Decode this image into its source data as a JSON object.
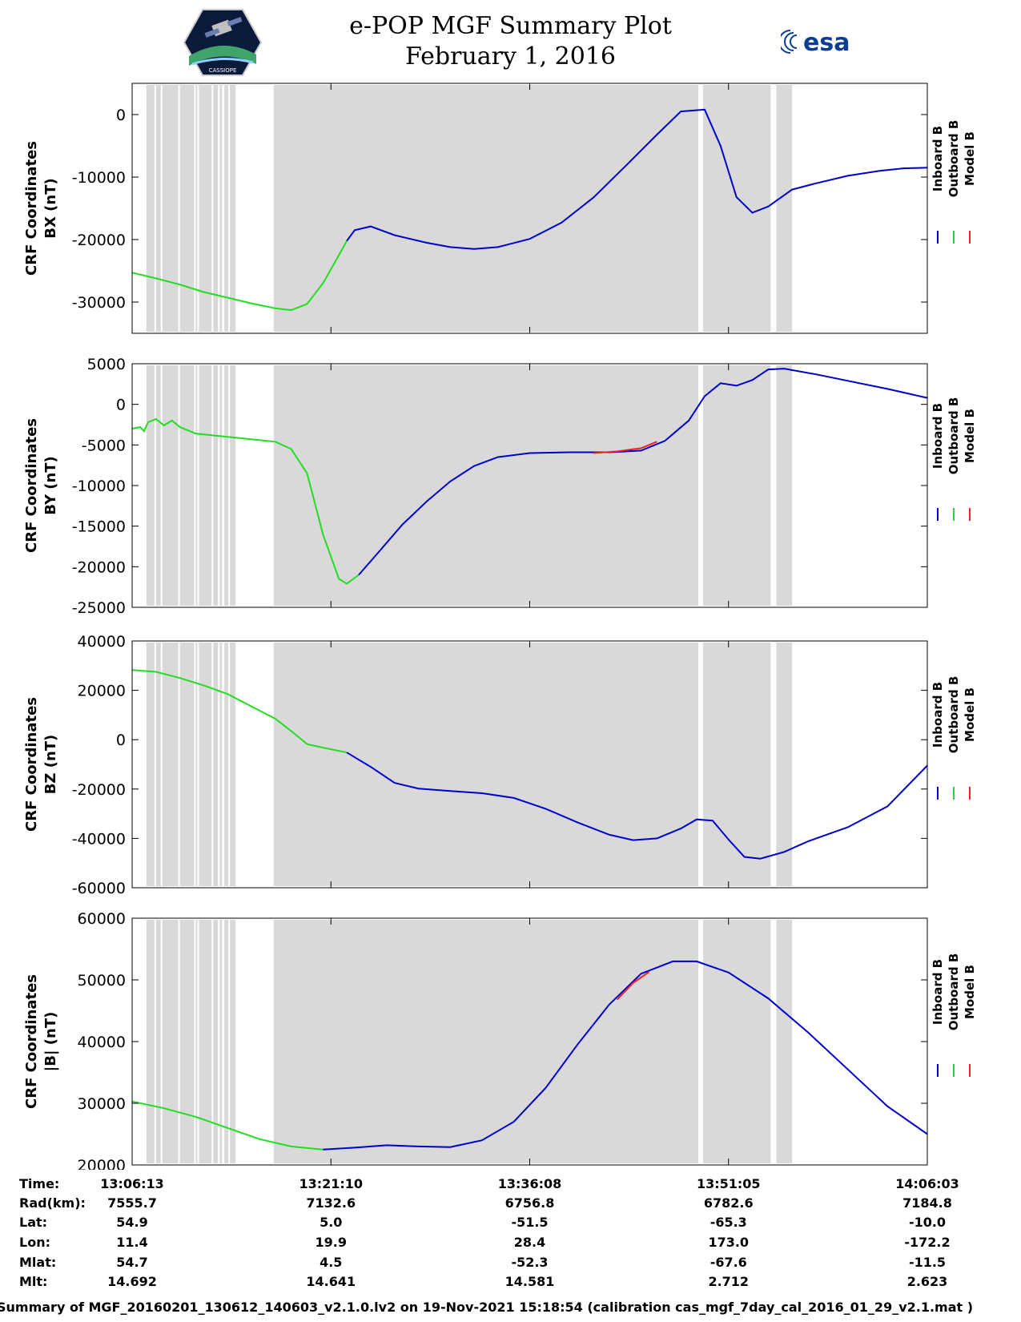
{
  "header": {
    "title_line1": "e-POP MGF Summary Plot",
    "title_line2": "February 1, 2016",
    "logo_left": "CASSIOPE",
    "logo_right": "esa"
  },
  "colors": {
    "inboard": "#0000cc",
    "outboard": "#22dd22",
    "model": "#ee2222",
    "shade": "#d9d9d9"
  },
  "legend": [
    "Inboard B",
    "Outboard B",
    "Model B"
  ],
  "chart_data": [
    {
      "type": "line",
      "ylabel": [
        "CRF Coordinates",
        "BX (nT)"
      ],
      "ylim": [
        -35000,
        5000
      ],
      "yticks": [
        0,
        -10000,
        -20000,
        -30000
      ],
      "ytick_labels": [
        "0",
        "-10000",
        "-20000",
        "-30000"
      ],
      "series": [
        {
          "name": "Outboard B",
          "points": [
            [
              0,
              -25300
            ],
            [
              0.03,
              -26200
            ],
            [
              0.06,
              -27200
            ],
            [
              0.09,
              -28400
            ],
            [
              0.12,
              -29300
            ],
            [
              0.15,
              -30200
            ],
            [
              0.18,
              -31000
            ],
            [
              0.2,
              -31300
            ],
            [
              0.22,
              -30300
            ],
            [
              0.24,
              -27000
            ],
            [
              0.26,
              -22500
            ],
            [
              0.27,
              -20200
            ]
          ]
        },
        {
          "name": "Inboard B",
          "points": [
            [
              0.27,
              -20200
            ],
            [
              0.28,
              -18500
            ],
            [
              0.3,
              -17900
            ],
            [
              0.33,
              -19300
            ],
            [
              0.37,
              -20500
            ],
            [
              0.4,
              -21200
            ],
            [
              0.43,
              -21500
            ],
            [
              0.46,
              -21200
            ],
            [
              0.5,
              -19900
            ],
            [
              0.54,
              -17300
            ],
            [
              0.58,
              -13300
            ],
            [
              0.62,
              -8300
            ],
            [
              0.66,
              -3200
            ],
            [
              0.69,
              500
            ],
            [
              0.72,
              800
            ],
            [
              0.74,
              -5000
            ],
            [
              0.76,
              -13200
            ],
            [
              0.78,
              -15700
            ],
            [
              0.8,
              -14700
            ],
            [
              0.83,
              -12000
            ],
            [
              0.86,
              -11000
            ],
            [
              0.9,
              -9800
            ],
            [
              0.94,
              -9000
            ],
            [
              0.97,
              -8600
            ],
            [
              1.0,
              -8500
            ]
          ]
        }
      ]
    },
    {
      "type": "line",
      "ylabel": [
        "CRF Coordinates",
        "BY (nT)"
      ],
      "ylim": [
        -25000,
        5000
      ],
      "yticks": [
        5000,
        0,
        -5000,
        -10000,
        -15000,
        -20000,
        -25000
      ],
      "ytick_labels": [
        "5000",
        "0",
        "-5000",
        "-10000",
        "-15000",
        "-20000",
        "-25000"
      ],
      "series": [
        {
          "name": "Outboard B",
          "points": [
            [
              0,
              -3000
            ],
            [
              0.01,
              -2800
            ],
            [
              0.015,
              -3300
            ],
            [
              0.02,
              -2200
            ],
            [
              0.03,
              -1800
            ],
            [
              0.04,
              -2600
            ],
            [
              0.05,
              -2000
            ],
            [
              0.06,
              -2800
            ],
            [
              0.07,
              -3200
            ],
            [
              0.08,
              -3600
            ],
            [
              0.1,
              -3800
            ],
            [
              0.14,
              -4200
            ],
            [
              0.18,
              -4600
            ],
            [
              0.2,
              -5500
            ],
            [
              0.22,
              -8500
            ],
            [
              0.24,
              -16000
            ],
            [
              0.26,
              -21500
            ],
            [
              0.27,
              -22100
            ],
            [
              0.285,
              -21000
            ]
          ]
        },
        {
          "name": "Inboard B",
          "points": [
            [
              0.285,
              -21000
            ],
            [
              0.31,
              -18200
            ],
            [
              0.34,
              -14800
            ],
            [
              0.37,
              -12000
            ],
            [
              0.4,
              -9500
            ],
            [
              0.43,
              -7600
            ],
            [
              0.46,
              -6500
            ],
            [
              0.5,
              -6000
            ],
            [
              0.55,
              -5900
            ],
            [
              0.6,
              -5900
            ],
            [
              0.64,
              -5700
            ],
            [
              0.67,
              -4500
            ],
            [
              0.7,
              -2000
            ],
            [
              0.72,
              1000
            ],
            [
              0.74,
              2600
            ],
            [
              0.76,
              2300
            ],
            [
              0.78,
              3000
            ],
            [
              0.8,
              4300
            ],
            [
              0.82,
              4400
            ],
            [
              0.86,
              3700
            ],
            [
              0.9,
              2900
            ],
            [
              0.95,
              1900
            ],
            [
              1.0,
              800
            ]
          ]
        },
        {
          "name": "Model B",
          "points": [
            [
              0.58,
              -6000
            ],
            [
              0.61,
              -5800
            ],
            [
              0.64,
              -5400
            ],
            [
              0.66,
              -4600
            ]
          ]
        }
      ]
    },
    {
      "type": "line",
      "ylabel": [
        "CRF Coordinates",
        "BZ (nT)"
      ],
      "ylim": [
        -60000,
        40000
      ],
      "yticks": [
        40000,
        20000,
        0,
        -20000,
        -40000,
        -60000
      ],
      "ytick_labels": [
        "40000",
        "20000",
        "0",
        "-20000",
        "-40000",
        "-60000"
      ],
      "series": [
        {
          "name": "Outboard B",
          "points": [
            [
              0,
              28200
            ],
            [
              0.03,
              27500
            ],
            [
              0.06,
              25000
            ],
            [
              0.09,
              22000
            ],
            [
              0.12,
              18500
            ],
            [
              0.15,
              13500
            ],
            [
              0.18,
              8500
            ],
            [
              0.2,
              3500
            ],
            [
              0.22,
              -1800
            ],
            [
              0.24,
              -3200
            ],
            [
              0.27,
              -5200
            ]
          ]
        },
        {
          "name": "Inboard B",
          "points": [
            [
              0.27,
              -5200
            ],
            [
              0.3,
              -11000
            ],
            [
              0.33,
              -17500
            ],
            [
              0.36,
              -19800
            ],
            [
              0.4,
              -20800
            ],
            [
              0.44,
              -21700
            ],
            [
              0.48,
              -23600
            ],
            [
              0.52,
              -28000
            ],
            [
              0.56,
              -33500
            ],
            [
              0.6,
              -38500
            ],
            [
              0.63,
              -40700
            ],
            [
              0.66,
              -40000
            ],
            [
              0.69,
              -36000
            ],
            [
              0.71,
              -32300
            ],
            [
              0.73,
              -32800
            ],
            [
              0.75,
              -40500
            ],
            [
              0.77,
              -47500
            ],
            [
              0.79,
              -48200
            ],
            [
              0.82,
              -45500
            ],
            [
              0.85,
              -41200
            ],
            [
              0.9,
              -35500
            ],
            [
              0.95,
              -27000
            ],
            [
              1.0,
              -10500
            ]
          ]
        }
      ]
    },
    {
      "type": "line",
      "ylabel": [
        "CRF Coordinates",
        "|B| (nT)"
      ],
      "ylim": [
        20000,
        60000
      ],
      "yticks": [
        60000,
        50000,
        40000,
        30000,
        20000
      ],
      "ytick_labels": [
        "60000",
        "50000",
        "40000",
        "30000",
        "20000"
      ],
      "series": [
        {
          "name": "Outboard B",
          "points": [
            [
              0,
              30300
            ],
            [
              0.04,
              29200
            ],
            [
              0.08,
              27800
            ],
            [
              0.12,
              26000
            ],
            [
              0.16,
              24200
            ],
            [
              0.2,
              23000
            ],
            [
              0.24,
              22500
            ]
          ]
        },
        {
          "name": "Inboard B",
          "points": [
            [
              0.24,
              22500
            ],
            [
              0.28,
              22800
            ],
            [
              0.32,
              23200
            ],
            [
              0.36,
              23000
            ],
            [
              0.4,
              22900
            ],
            [
              0.44,
              24000
            ],
            [
              0.48,
              27000
            ],
            [
              0.52,
              32500
            ],
            [
              0.56,
              39500
            ],
            [
              0.6,
              46000
            ],
            [
              0.64,
              51000
            ],
            [
              0.68,
              53000
            ],
            [
              0.71,
              53000
            ],
            [
              0.75,
              51200
            ],
            [
              0.8,
              47000
            ],
            [
              0.85,
              41500
            ],
            [
              0.9,
              35500
            ],
            [
              0.95,
              29500
            ],
            [
              1.0,
              25000
            ]
          ]
        },
        {
          "name": "Model B",
          "points": [
            [
              0.61,
              46800
            ],
            [
              0.63,
              49500
            ],
            [
              0.65,
              51300
            ]
          ]
        }
      ]
    }
  ],
  "shaded_intervals": [
    [
      0.018,
      0.028
    ],
    [
      0.03,
      0.036
    ],
    [
      0.038,
      0.058
    ],
    [
      0.06,
      0.078
    ],
    [
      0.08,
      0.082
    ],
    [
      0.084,
      0.1
    ],
    [
      0.102,
      0.108
    ],
    [
      0.11,
      0.113
    ],
    [
      0.116,
      0.121
    ],
    [
      0.123,
      0.13
    ],
    [
      0.178,
      0.712
    ],
    [
      0.718,
      0.803
    ],
    [
      0.81,
      0.83
    ]
  ],
  "x_ticks": [
    0,
    0.25,
    0.5,
    0.75,
    1.0
  ],
  "meta": {
    "labels": [
      "Time:",
      "Rad(km):",
      "Lat:",
      "Lon:",
      "Mlat:",
      "Mlt:"
    ],
    "columns": [
      [
        "13:06:13",
        "7555.7",
        "54.9",
        "11.4",
        "54.7",
        "14.692"
      ],
      [
        "13:21:10",
        "7132.6",
        "5.0",
        "19.9",
        "4.5",
        "14.641"
      ],
      [
        "13:36:08",
        "6756.8",
        "-51.5",
        "28.4",
        "-52.3",
        "14.581"
      ],
      [
        "13:51:05",
        "6782.6",
        "-65.3",
        "173.0",
        "-67.6",
        "2.712"
      ],
      [
        "14:06:03",
        "7184.8",
        "-10.0",
        "-172.2",
        "-11.5",
        "2.623"
      ]
    ]
  },
  "footer": "Summary of MGF_20160201_130612_140603_v2.1.0.lv2 on 19-Nov-2021 15:18:54 (calibration cas_mgf_7day_cal_2016_01_29_v2.1.mat )"
}
